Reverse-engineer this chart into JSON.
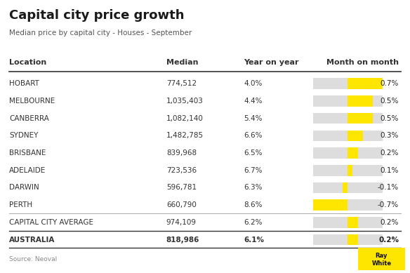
{
  "title": "Capital city price growth",
  "subtitle": "Median price by capital city - Houses - September",
  "source": "Source: Neoval",
  "headers": [
    "Location",
    "Median",
    "Year on year",
    "Month on month"
  ],
  "rows": [
    {
      "location": "HOBART",
      "median": "774,512",
      "yoy": "4.0%",
      "mom": "0.7%",
      "mom_val": 0.7,
      "yoy_val": 4.0
    },
    {
      "location": "MELBOURNE",
      "median": "1,035,403",
      "yoy": "4.4%",
      "mom": "0.5%",
      "mom_val": 0.5,
      "yoy_val": 4.4
    },
    {
      "location": "CANBERRA",
      "median": "1,082,140",
      "yoy": "5.4%",
      "mom": "0.5%",
      "mom_val": 0.5,
      "yoy_val": 5.4
    },
    {
      "location": "SYDNEY",
      "median": "1,482,785",
      "yoy": "6.6%",
      "mom": "0.3%",
      "mom_val": 0.3,
      "yoy_val": 6.6
    },
    {
      "location": "BRISBANE",
      "median": "839,968",
      "yoy": "6.5%",
      "mom": "0.2%",
      "mom_val": 0.2,
      "yoy_val": 6.5
    },
    {
      "location": "ADELAIDE",
      "median": "723,536",
      "yoy": "6.7%",
      "mom": "0.1%",
      "mom_val": 0.1,
      "yoy_val": 6.7
    },
    {
      "location": "DARWIN",
      "median": "596,781",
      "yoy": "6.3%",
      "mom": "-0.1%",
      "mom_val": -0.1,
      "yoy_val": 6.3
    },
    {
      "location": "PERTH",
      "median": "660,790",
      "yoy": "8.6%",
      "mom": "-0.7%",
      "mom_val": -0.7,
      "yoy_val": 8.6
    },
    {
      "location": "CAPITAL CITY AVERAGE",
      "median": "974,109",
      "yoy": "6.2%",
      "mom": "0.2%",
      "mom_val": 0.2,
      "yoy_val": 6.2
    },
    {
      "location": "AUSTRALIA",
      "median": "818,986",
      "yoy": "6.1%",
      "mom": "0.2%",
      "mom_val": 0.2,
      "yoy_val": 6.1
    }
  ],
  "bold_rows": [
    "AUSTRALIA"
  ],
  "separator_before_locs": [
    "CAPITAL CITY AVERAGE"
  ],
  "australia_loc": "AUSTRALIA",
  "yellow_color": "#FFE600",
  "gray_bar_color": "#DDDDDD",
  "bg_color": "#FFFFFF",
  "text_color": "#333333",
  "light_text_color": "#888888",
  "raywhite_yellow": "#FFE600"
}
